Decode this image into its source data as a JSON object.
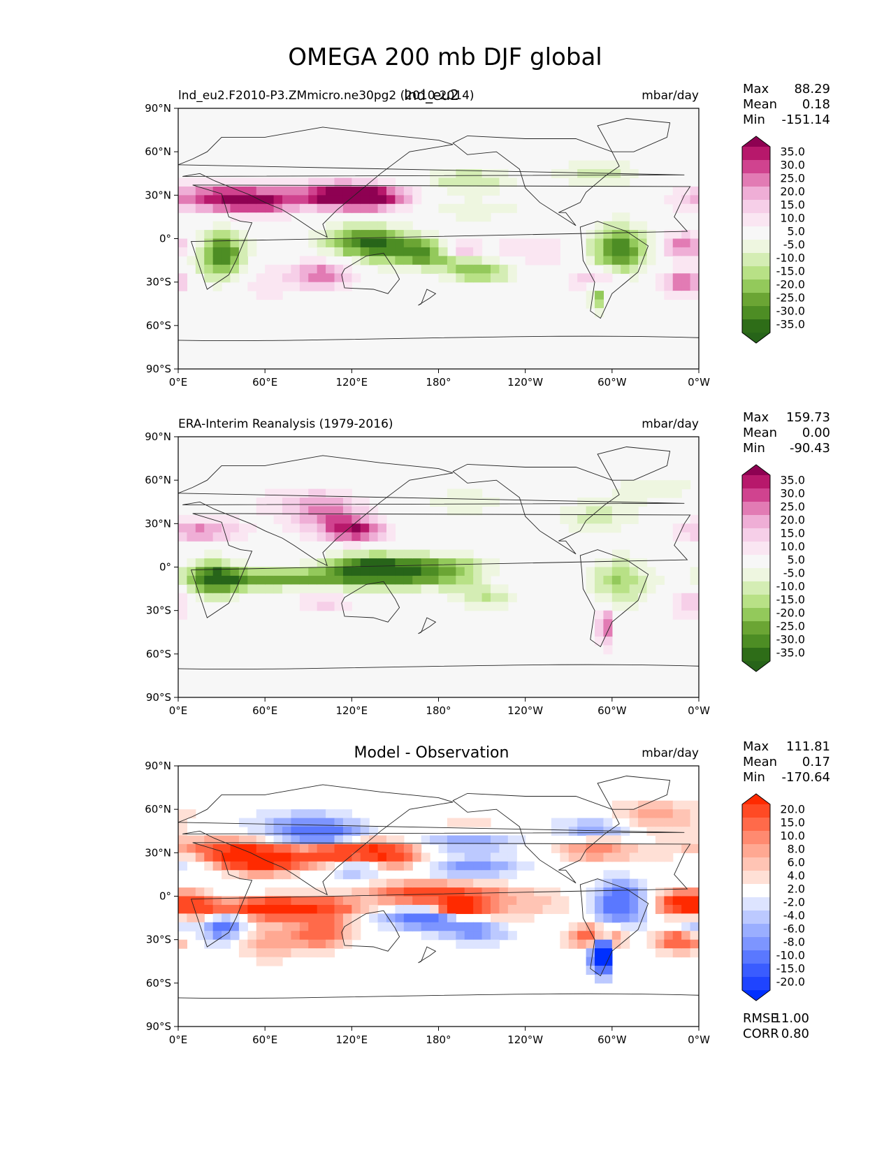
{
  "title": "OMEGA 200 mb DJF global",
  "chart_data": [
    {
      "type": "heatmap",
      "id": "test",
      "title_center": "lnd_eu2",
      "title_left": "lnd_eu2.F2010-P3.ZMmicro.ne30pg2 (2010-2014)",
      "units": "mbar/day",
      "stats": [
        {
          "label": "Max",
          "value": "88.29"
        },
        {
          "label": "Mean",
          "value": "0.18"
        },
        {
          "label": "Min",
          "value": "-151.14"
        }
      ],
      "colorbar_ticks": [
        "35.0",
        "30.0",
        "25.0",
        "20.0",
        "15.0",
        "10.0",
        "5.0",
        "-5.0",
        "-10.0",
        "-15.0",
        "-20.0",
        "-25.0",
        "-30.0",
        "-35.0"
      ],
      "colorbar_colors": [
        "#8e0152",
        "#b7186b",
        "#d0438f",
        "#e27bb4",
        "#efaed6",
        "#f6cfe8",
        "#fae6f2",
        "#f7f7f7",
        "#eef6e0",
        "#d4edb4",
        "#b8e186",
        "#93c95b",
        "#6ba534",
        "#4d8d24",
        "#2e6d18",
        "#276419"
      ],
      "xticks": [
        "0°E",
        "60°E",
        "120°E",
        "180°",
        "120°W",
        "60°W",
        "0°W"
      ],
      "yticks": [
        "90°N",
        "60°N",
        "30°N",
        "0°",
        "30°S",
        "60°S",
        "90°S"
      ],
      "xlim": [
        0,
        360
      ],
      "ylim": [
        -90,
        90
      ]
    },
    {
      "type": "heatmap",
      "id": "ref",
      "title_center": "",
      "title_left": "ERA-Interim Reanalysis (1979-2016)",
      "units": "mbar/day",
      "stats": [
        {
          "label": "Max",
          "value": "159.73"
        },
        {
          "label": "Mean",
          "value": "0.00"
        },
        {
          "label": "Min",
          "value": "-90.43"
        }
      ],
      "colorbar_ticks": [
        "35.0",
        "30.0",
        "25.0",
        "20.0",
        "15.0",
        "10.0",
        "5.0",
        "-5.0",
        "-10.0",
        "-15.0",
        "-20.0",
        "-25.0",
        "-30.0",
        "-35.0"
      ],
      "colorbar_colors": [
        "#8e0152",
        "#b7186b",
        "#d0438f",
        "#e27bb4",
        "#efaed6",
        "#f6cfe8",
        "#fae6f2",
        "#f7f7f7",
        "#eef6e0",
        "#d4edb4",
        "#b8e186",
        "#93c95b",
        "#6ba534",
        "#4d8d24",
        "#2e6d18",
        "#276419"
      ],
      "xticks": [
        "0°E",
        "60°E",
        "120°E",
        "180°",
        "120°W",
        "60°W",
        "0°W"
      ],
      "yticks": [
        "90°N",
        "60°N",
        "30°N",
        "0°",
        "30°S",
        "60°S",
        "90°S"
      ],
      "xlim": [
        0,
        360
      ],
      "ylim": [
        -90,
        90
      ]
    },
    {
      "type": "heatmap",
      "id": "diff",
      "title_center": "Model - Observation",
      "title_left": "",
      "units": "mbar/day",
      "stats": [
        {
          "label": "Max",
          "value": "111.81"
        },
        {
          "label": "Mean",
          "value": "0.17"
        },
        {
          "label": "Min",
          "value": "-170.64"
        }
      ],
      "extra_stats": [
        {
          "label": "RMSE",
          "value": "11.00"
        },
        {
          "label": "CORR",
          "value": "0.80"
        }
      ],
      "colorbar_ticks": [
        "20.0",
        "15.0",
        "10.0",
        "8.0",
        "6.0",
        "4.0",
        "2.0",
        "-2.0",
        "-4.0",
        "-6.0",
        "-8.0",
        "-10.0",
        "-15.0",
        "-20.0"
      ],
      "colorbar_colors": [
        "#ff2a00",
        "#ff4a24",
        "#ff6a4a",
        "#ff8a70",
        "#ffa892",
        "#ffc4b4",
        "#ffe0d6",
        "#ffffff",
        "#dde4ff",
        "#bcc9ff",
        "#9aaeff",
        "#7d95ff",
        "#5a78ff",
        "#3a5cff",
        "#1f44ff",
        "#0030ff"
      ],
      "xticks": [
        "0°E",
        "60°E",
        "120°E",
        "180°",
        "120°W",
        "60°W",
        "0°W"
      ],
      "yticks": [
        "90°N",
        "60°N",
        "30°N",
        "0°",
        "30°S",
        "60°S",
        "90°S"
      ],
      "xlim": [
        0,
        360
      ],
      "ylim": [
        -90,
        90
      ]
    }
  ]
}
